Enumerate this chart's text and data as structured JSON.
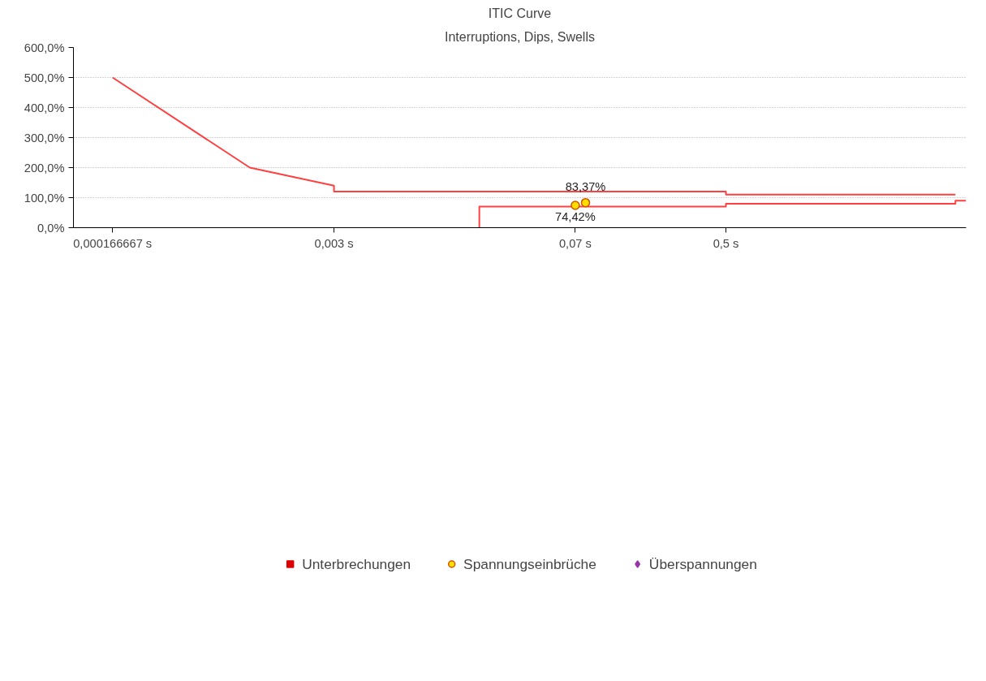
{
  "chart_data": {
    "type": "scatter",
    "title": "ITIC Curve",
    "subtitle": "Interruptions, Dips, Swells",
    "xlim": [
      0.0001,
      11.5
    ],
    "ylim": [
      0,
      600
    ],
    "log": "x",
    "xticks": [
      {
        "value": 0.000166667,
        "label": "0,000166667 s"
      },
      {
        "value": 0.003,
        "label": "0,003 s"
      },
      {
        "value": 0.07,
        "label": "0,07 s"
      },
      {
        "value": 0.5,
        "label": "0,5 s"
      }
    ],
    "yticks": [
      {
        "value": 0,
        "label": "0,0%"
      },
      {
        "value": 100,
        "label": "100,0%"
      },
      {
        "value": 200,
        "label": "200,0%"
      },
      {
        "value": 300,
        "label": "300,0%"
      },
      {
        "value": 400,
        "label": "400,0%"
      },
      {
        "value": 500,
        "label": "500,0%"
      },
      {
        "value": 600,
        "label": "600,0%"
      }
    ],
    "grid": "y",
    "legend": "bottom",
    "series": [
      {
        "type": "line",
        "color": "#ff4040",
        "x": [
          0.000166667,
          0.001,
          0.003,
          0.003,
          0.5,
          0.5,
          10
        ],
        "values": [
          500,
          200,
          140,
          120,
          120,
          110,
          110
        ]
      },
      {
        "type": "line",
        "color": "#ff4040",
        "x": [
          0.02,
          0.02,
          0.5,
          0.5,
          10,
          10,
          11.5
        ],
        "values": [
          0,
          70,
          70,
          80,
          80,
          90,
          90
        ]
      },
      {
        "name": "Unterbrechungen",
        "marker": "square",
        "color": "#dd0000"
      },
      {
        "name": "Spannungseinbrüche",
        "marker": "circle",
        "color": "#ffdd00",
        "x": [
          0.07,
          0.08
        ],
        "values": [
          74.42,
          83.37
        ],
        "value_labels": [
          "74,42%",
          "83,37%"
        ]
      },
      {
        "name": "Überspannungen",
        "marker": "diamond",
        "color": "#9933aa"
      }
    ]
  }
}
